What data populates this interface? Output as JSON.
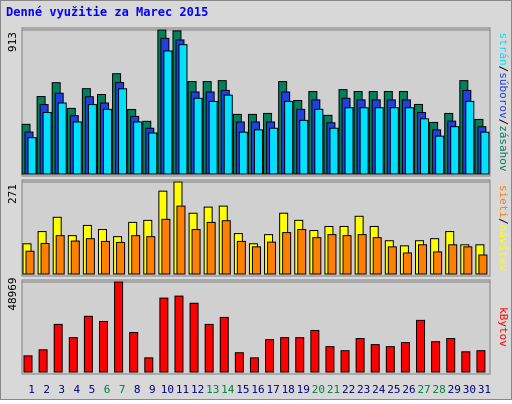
{
  "chart_data": {
    "type": "bar",
    "title": "Denné využitie za Marec 2015",
    "separator": "/",
    "categories": [
      "1",
      "2",
      "3",
      "4",
      "5",
      "6",
      "7",
      "8",
      "9",
      "10",
      "11",
      "12",
      "13",
      "14",
      "15",
      "16",
      "17",
      "18",
      "19",
      "20",
      "21",
      "22",
      "23",
      "24",
      "25",
      "26",
      "27",
      "28",
      "29",
      "30",
      "31"
    ],
    "category_colors": [
      "#000080",
      "#000080",
      "#000080",
      "#000080",
      "#000080",
      "#008040",
      "#008040",
      "#000080",
      "#000080",
      "#000080",
      "#000080",
      "#000080",
      "#008040",
      "#008040",
      "#000080",
      "#000080",
      "#000080",
      "#000080",
      "#000080",
      "#008040",
      "#008040",
      "#000080",
      "#000080",
      "#000080",
      "#000080",
      "#000080",
      "#008040",
      "#008040",
      "#000080",
      "#000080",
      "#000080"
    ],
    "panels": [
      {
        "ylim": [
          0,
          913
        ],
        "yticks": [
          913
        ],
        "series": [
          {
            "name": "zásahov",
            "color": "#00805c",
            "values": [
              315,
              491,
              579,
              416,
              541,
              504,
              636,
              409,
              334,
              913,
              907,
              586,
              586,
              592,
              378,
              378,
              384,
              586,
              466,
              523,
              372,
              535,
              523,
              523,
              523,
              523,
              441,
              327,
              384,
              592,
              346
            ]
          },
          {
            "name": "súborov",
            "color": "#2040e0",
            "values": [
              266,
              440,
              512,
              370,
              490,
              450,
              580,
              365,
              290,
              860,
              850,
              520,
              520,
              530,
              330,
              330,
              330,
              520,
              410,
              470,
              325,
              480,
              470,
              470,
              470,
              470,
              390,
              280,
              335,
              530,
              300
            ]
          },
          {
            "name": "strán",
            "color": "#00e0ff",
            "values": [
              230,
              390,
              450,
              330,
              440,
              410,
              540,
              330,
              260,
              780,
              820,
              480,
              460,
              500,
              265,
              280,
              290,
              460,
              340,
              410,
              290,
              420,
              420,
              420,
              420,
              420,
              350,
              240,
              300,
              460,
              265
            ]
          }
        ]
      },
      {
        "ylim": [
          0,
          271
        ],
        "yticks": [
          271
        ],
        "series": [
          {
            "name": "návštev",
            "color": "#ffff00",
            "values": [
              89,
              125,
              167,
              113,
              143,
              131,
              110,
              152,
              158,
              244,
              271,
              179,
              197,
              200,
              119,
              89,
              116,
              179,
              158,
              128,
              140,
              140,
              170,
              140,
              98,
              83,
              98,
              104,
              125,
              86,
              86
            ]
          },
          {
            "name": "sieti",
            "color": "#ff8000",
            "values": [
              67,
              90,
              113,
              97,
              104,
              96,
              93,
              113,
              110,
              161,
              200,
              131,
              152,
              157,
              96,
              80,
              94,
              122,
              131,
              107,
              116,
              113,
              116,
              107,
              80,
              62,
              86,
              65,
              86,
              80,
              56
            ]
          }
        ]
      },
      {
        "ylim": [
          0,
          48969
        ],
        "yticks": [
          48969
        ],
        "series": [
          {
            "name": "kBytov",
            "color": "#ff0000",
            "values": [
              8800,
              12100,
              25900,
              18700,
              30300,
              27500,
              48969,
              21500,
              7700,
              40200,
              41300,
              37400,
              25900,
              29700,
              10500,
              7700,
              17600,
              18700,
              18700,
              22600,
              13800,
              11600,
              18200,
              14900,
              13800,
              16000,
              28100,
              16500,
              18200,
              11000,
              11600
            ]
          }
        ]
      }
    ]
  }
}
